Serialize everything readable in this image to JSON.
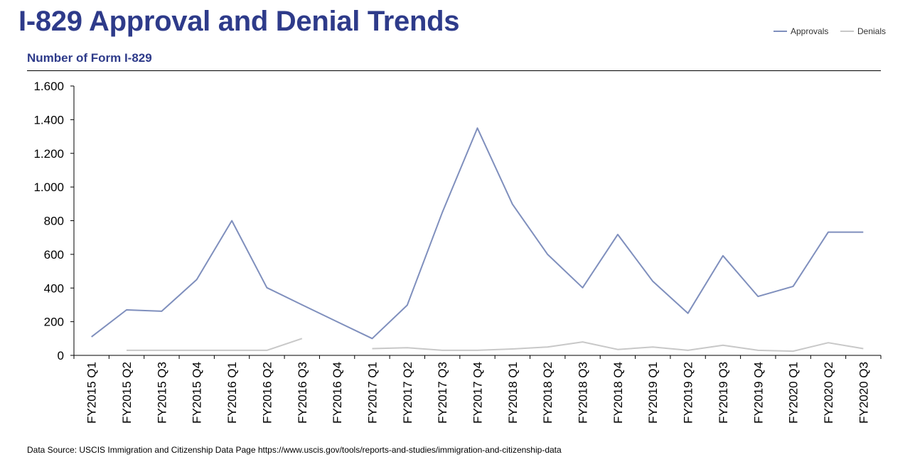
{
  "header": {
    "title": "I-829 Approval and Denial Trends",
    "subtitle": "Number of Form I-829"
  },
  "source_note": "Data Source: USCIS Immigration and Citizenship Data Page https://www.uscis.gov/tools/reports-and-studies/immigration-and-citizenship-data",
  "colors": {
    "title": "#2e3b8a",
    "approvals": "#7f8fbd",
    "denials": "#c8c8c8",
    "axis": "#000000"
  },
  "chart_data": {
    "type": "line",
    "title": "I-829 Approval and Denial Trends",
    "subtitle": "Number of Form I-829",
    "xlabel": "",
    "ylabel": "",
    "ylim": [
      0,
      1600
    ],
    "yticks": [
      0,
      200,
      400,
      600,
      800,
      1000,
      1200,
      1400,
      1600
    ],
    "ytick_labels": [
      "0",
      "200",
      "400",
      "600",
      "800",
      "1.000",
      "1.200",
      "1.400",
      "1.600"
    ],
    "grid": false,
    "legend": "top-right",
    "categories": [
      "FY2015 Q1",
      "FY2015 Q2",
      "FY2015 Q3",
      "FY2015 Q4",
      "FY2016 Q1",
      "FY2016 Q2",
      "FY2016 Q3",
      "FY2016 Q4",
      "FY2017 Q1",
      "FY2017 Q2",
      "FY2017 Q3",
      "FY2017 Q4",
      "FY2018 Q1",
      "FY2018 Q2",
      "FY2018 Q3",
      "FY2018 Q4",
      "FY2019 Q1",
      "FY2019 Q2",
      "FY2019 Q3",
      "FY2019 Q4",
      "FY2020 Q1",
      "FY2020 Q2",
      "FY2020 Q3"
    ],
    "series": [
      {
        "name": "Approvals",
        "color": "#7f8fbd",
        "values": [
          110,
          270,
          262,
          450,
          800,
          402,
          300,
          200,
          100,
          298,
          850,
          1350,
          898,
          600,
          402,
          718,
          440,
          250,
          592,
          350,
          410,
          732,
          732
        ]
      },
      {
        "name": "Denials",
        "color": "#c8c8c8",
        "values": [
          null,
          30,
          30,
          30,
          30,
          30,
          100,
          null,
          40,
          45,
          30,
          30,
          38,
          50,
          80,
          35,
          50,
          30,
          60,
          30,
          25,
          75,
          40
        ]
      }
    ]
  }
}
